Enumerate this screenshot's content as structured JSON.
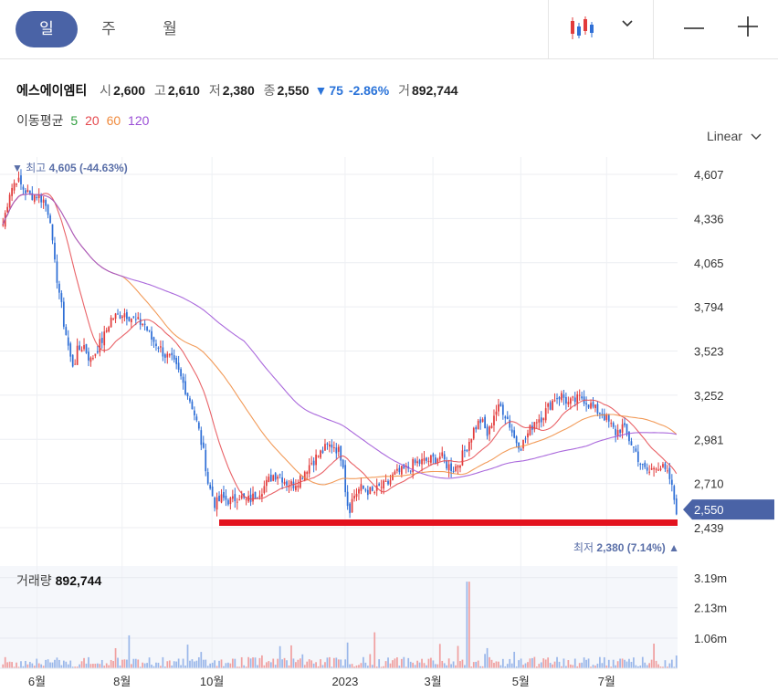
{
  "toolbar": {
    "tabs": [
      {
        "label": "일",
        "active": true
      },
      {
        "label": "주",
        "active": false
      },
      {
        "label": "월",
        "active": false
      }
    ],
    "chart_type_icon": "candlestick-icon",
    "dropdown_icon": "chevron-down-icon",
    "zoom_out_icon": "minus-icon",
    "zoom_in_icon": "plus-icon"
  },
  "quote": {
    "name": "에스에이엠티",
    "open_label": "시",
    "open": "2,600",
    "high_label": "고",
    "high": "2,610",
    "low_label": "저",
    "low": "2,380",
    "close_label": "종",
    "close": "2,550",
    "change_arrow": "▼",
    "change": "75",
    "change_pct": "-2.86%",
    "volume_label": "거",
    "volume": "892,744"
  },
  "moving_average": {
    "label": "이동평균",
    "periods": [
      {
        "label": "5",
        "color": "#2e9e3e"
      },
      {
        "label": "20",
        "color": "#e5484d"
      },
      {
        "label": "60",
        "color": "#f08a3c"
      },
      {
        "label": "120",
        "color": "#9b4fd6"
      }
    ]
  },
  "scale": {
    "label": "Linear"
  },
  "colors": {
    "up": "#e23b3b",
    "down": "#2f6fd6",
    "accent": "#4a63a6",
    "support_line": "#e3131f"
  },
  "chart_data": {
    "type": "candlestick",
    "y_ticks": [
      "4,607",
      "4,336",
      "4,065",
      "3,794",
      "3,523",
      "3,252",
      "2,981",
      "2,710",
      "2,439"
    ],
    "y_tick_values": [
      4607,
      4336,
      4065,
      3794,
      3523,
      3252,
      2981,
      2710,
      2439
    ],
    "ylim": [
      2380,
      4640
    ],
    "x_labels": [
      "6월",
      "8월",
      "10월",
      "2023",
      "3월",
      "5월",
      "7월"
    ],
    "x_label_positions": [
      0.052,
      0.178,
      0.311,
      0.508,
      0.638,
      0.768,
      0.895
    ],
    "current_price_label": "2,550",
    "current_price": 2550,
    "high_annotation": "최고",
    "high_value": "4,605",
    "high_pct": "(-44.63%)",
    "high_marker": "▼",
    "low_annotation": "최저",
    "low_value": "2,380",
    "low_pct": "(7.14%)",
    "low_marker": "▲",
    "support_level": 2470,
    "close_series": [
      [
        0.0,
        4300
      ],
      [
        0.01,
        4500
      ],
      [
        0.02,
        4580
      ],
      [
        0.03,
        4520
      ],
      [
        0.04,
        4480
      ],
      [
        0.05,
        4480
      ],
      [
        0.06,
        4450
      ],
      [
        0.07,
        4350
      ],
      [
        0.075,
        4100
      ],
      [
        0.085,
        3850
      ],
      [
        0.09,
        3700
      ],
      [
        0.095,
        3600
      ],
      [
        0.1,
        3480
      ],
      [
        0.105,
        3430
      ],
      [
        0.11,
        3520
      ],
      [
        0.12,
        3560
      ],
      [
        0.13,
        3460
      ],
      [
        0.14,
        3540
      ],
      [
        0.15,
        3610
      ],
      [
        0.16,
        3720
      ],
      [
        0.17,
        3740
      ],
      [
        0.18,
        3760
      ],
      [
        0.19,
        3730
      ],
      [
        0.2,
        3700
      ],
      [
        0.21,
        3690
      ],
      [
        0.22,
        3600
      ],
      [
        0.23,
        3560
      ],
      [
        0.24,
        3500
      ],
      [
        0.25,
        3470
      ],
      [
        0.26,
        3400
      ],
      [
        0.27,
        3300
      ],
      [
        0.28,
        3200
      ],
      [
        0.29,
        3050
      ],
      [
        0.3,
        2850
      ],
      [
        0.305,
        2700
      ],
      [
        0.31,
        2650
      ],
      [
        0.315,
        2580
      ],
      [
        0.325,
        2620
      ],
      [
        0.34,
        2600
      ],
      [
        0.35,
        2640
      ],
      [
        0.36,
        2600
      ],
      [
        0.37,
        2620
      ],
      [
        0.38,
        2660
      ],
      [
        0.39,
        2700
      ],
      [
        0.4,
        2760
      ],
      [
        0.41,
        2770
      ],
      [
        0.42,
        2720
      ],
      [
        0.43,
        2700
      ],
      [
        0.44,
        2740
      ],
      [
        0.45,
        2800
      ],
      [
        0.46,
        2850
      ],
      [
        0.47,
        2890
      ],
      [
        0.48,
        2930
      ],
      [
        0.49,
        2950
      ],
      [
        0.5,
        2900
      ],
      [
        0.505,
        2840
      ],
      [
        0.51,
        2600
      ],
      [
        0.515,
        2560
      ],
      [
        0.52,
        2630
      ],
      [
        0.53,
        2680
      ],
      [
        0.54,
        2670
      ],
      [
        0.55,
        2650
      ],
      [
        0.56,
        2690
      ],
      [
        0.57,
        2700
      ],
      [
        0.58,
        2760
      ],
      [
        0.59,
        2780
      ],
      [
        0.6,
        2800
      ],
      [
        0.61,
        2830
      ],
      [
        0.62,
        2840
      ],
      [
        0.63,
        2850
      ],
      [
        0.64,
        2860
      ],
      [
        0.65,
        2880
      ],
      [
        0.66,
        2820
      ],
      [
        0.67,
        2800
      ],
      [
        0.68,
        2860
      ],
      [
        0.69,
        2950
      ],
      [
        0.7,
        3050
      ],
      [
        0.71,
        3100
      ],
      [
        0.72,
        3000
      ],
      [
        0.73,
        3150
      ],
      [
        0.74,
        3180
      ],
      [
        0.75,
        3100
      ],
      [
        0.76,
        2980
      ],
      [
        0.77,
        2940
      ],
      [
        0.78,
        3020
      ],
      [
        0.79,
        3100
      ],
      [
        0.8,
        3120
      ],
      [
        0.81,
        3180
      ],
      [
        0.82,
        3240
      ],
      [
        0.83,
        3250
      ],
      [
        0.84,
        3200
      ],
      [
        0.85,
        3220
      ],
      [
        0.86,
        3240
      ],
      [
        0.87,
        3200
      ],
      [
        0.88,
        3160
      ],
      [
        0.89,
        3140
      ],
      [
        0.9,
        3080
      ],
      [
        0.91,
        3020
      ],
      [
        0.92,
        3060
      ],
      [
        0.93,
        2980
      ],
      [
        0.94,
        2900
      ],
      [
        0.95,
        2800
      ],
      [
        0.96,
        2780
      ],
      [
        0.97,
        2830
      ],
      [
        0.98,
        2800
      ],
      [
        0.99,
        2740
      ],
      [
        1.0,
        2550
      ]
    ],
    "volume_ticks": [
      "3.19m",
      "2.13m",
      "1.06m"
    ],
    "volume_tick_values": [
      3.19,
      2.13,
      1.06
    ],
    "volume_label": "거래량",
    "volume_value": "892,744"
  }
}
